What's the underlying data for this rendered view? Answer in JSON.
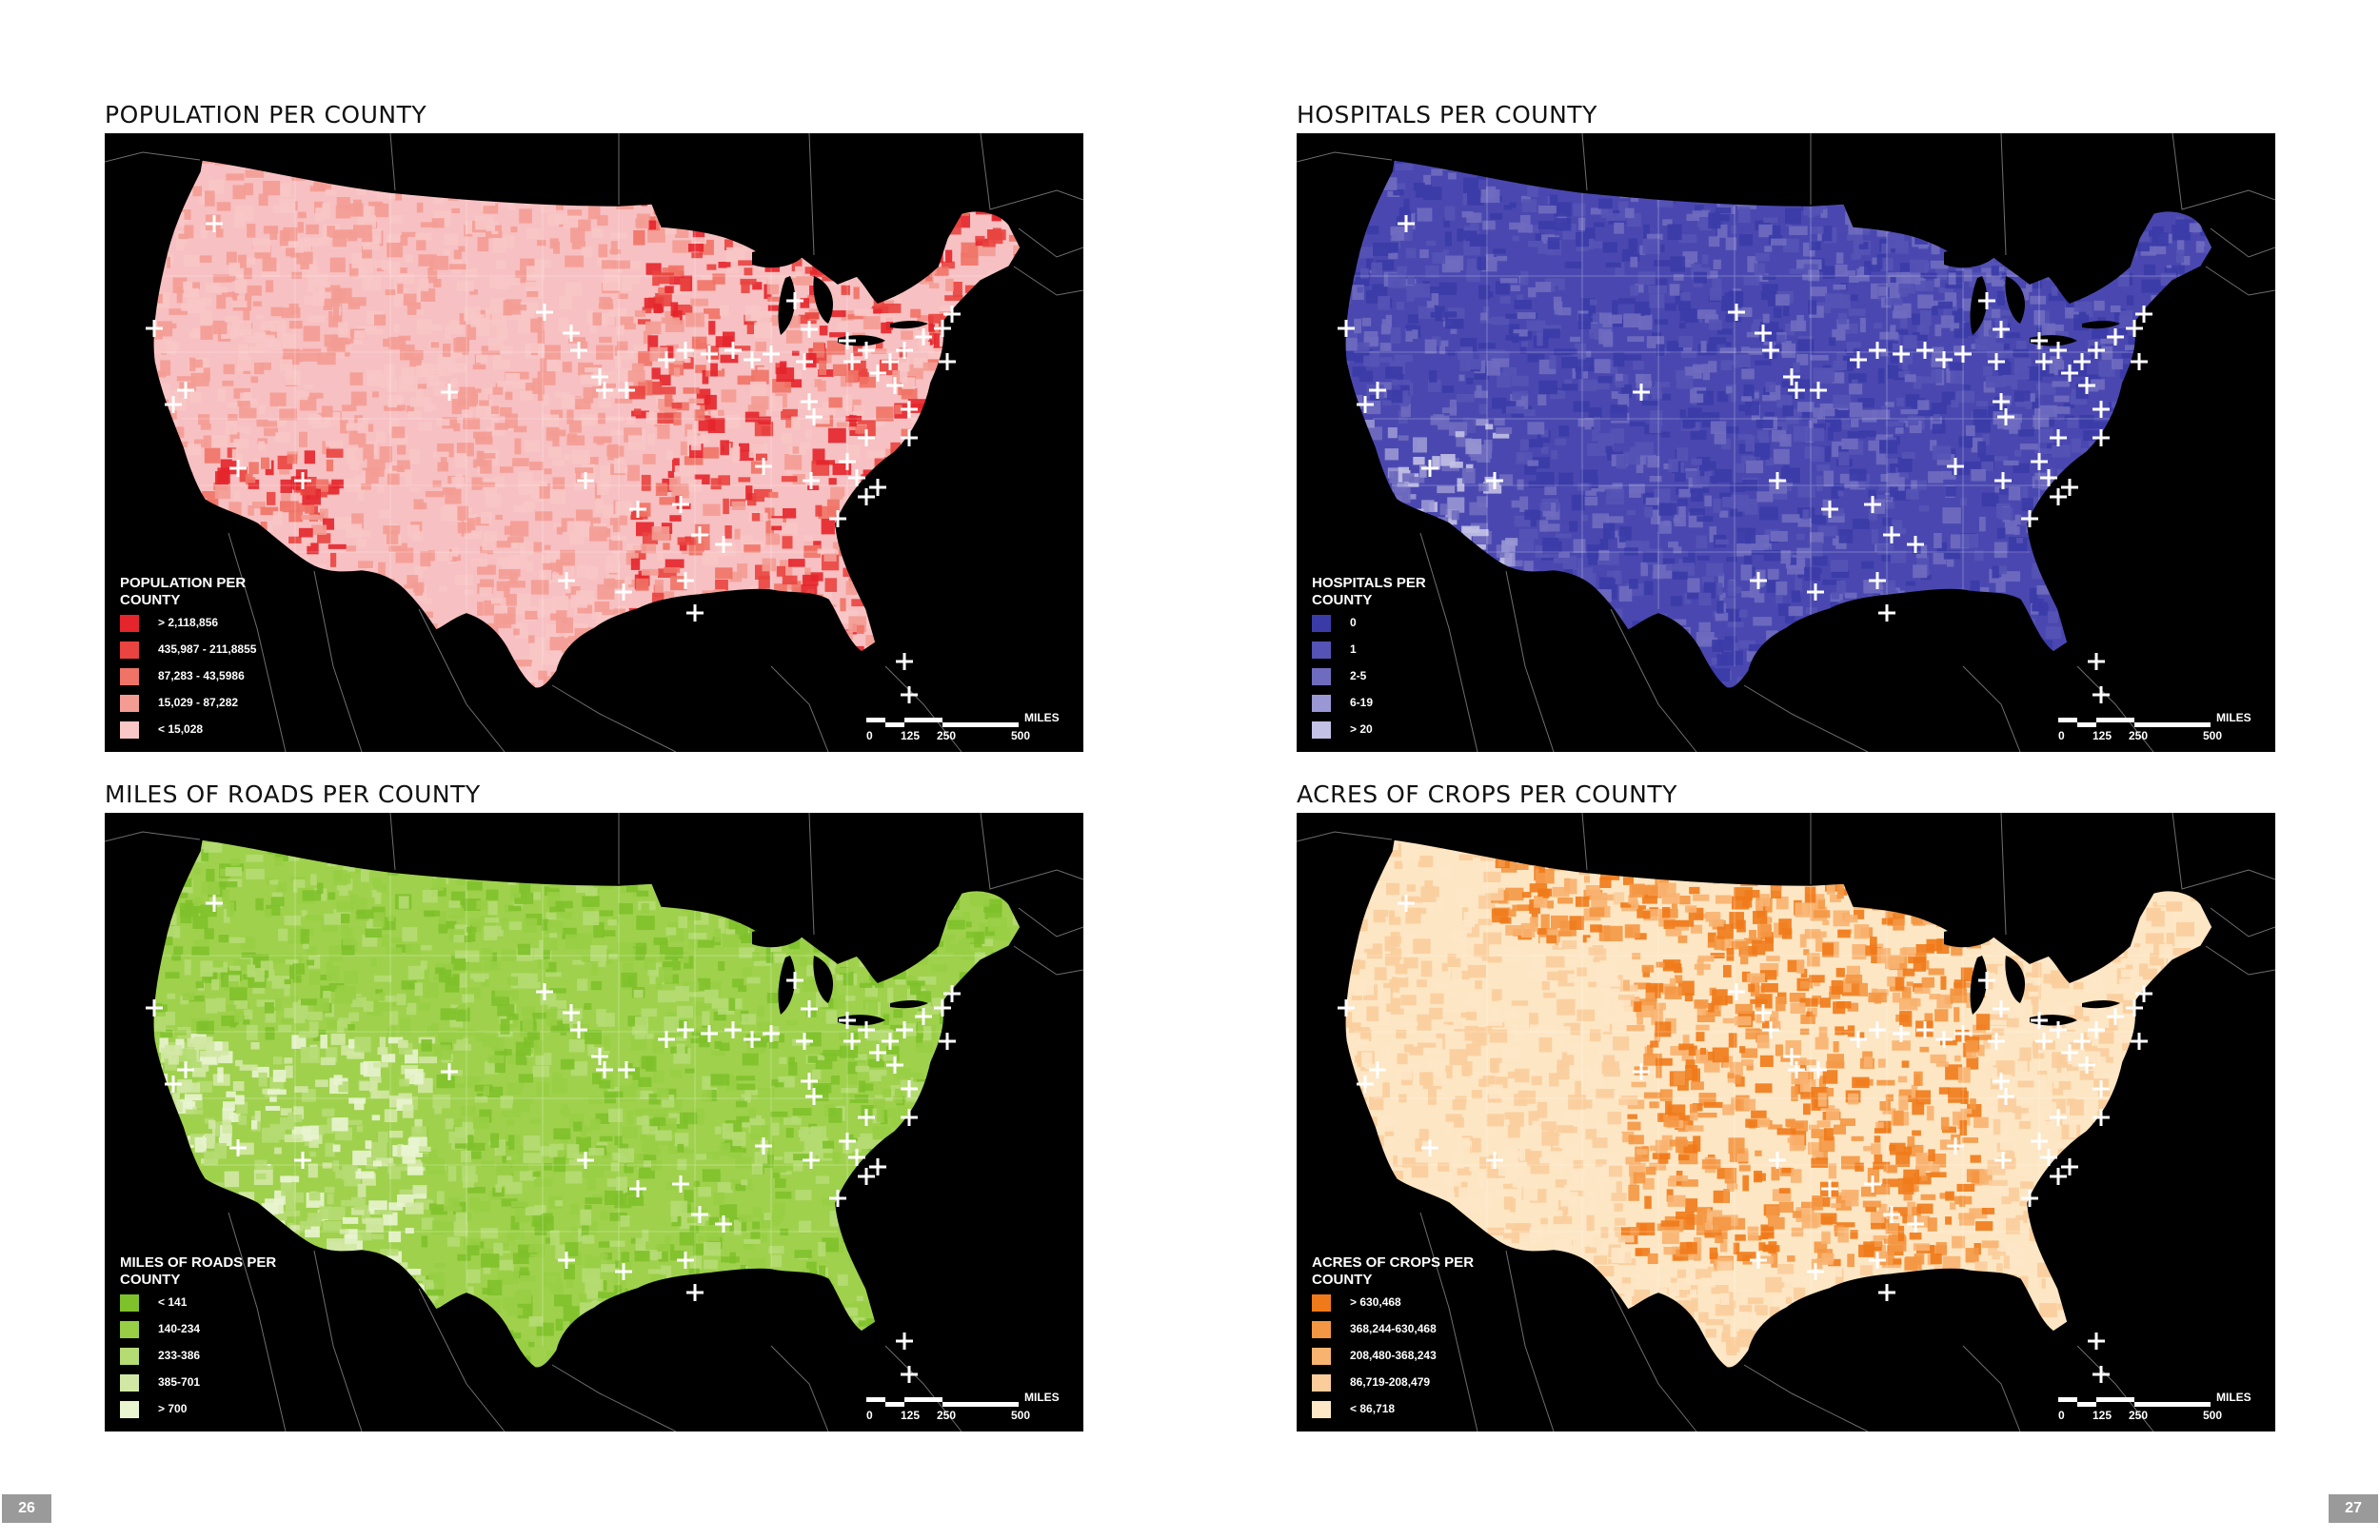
{
  "pages": {
    "left_number": "26",
    "right_number": "27"
  },
  "scale": {
    "unit": "MILES",
    "ticks": [
      "0",
      "125",
      "250",
      "500"
    ]
  },
  "marker_icon": "plus-cross-icon",
  "maps": [
    {
      "id": "population",
      "title": "POPULATION PER COUNTY",
      "legend_title": "POPULATION PER COUNTY",
      "base_color": "#f7c0c2",
      "accent_color": "#e62a2a",
      "classes": [
        {
          "label": "> 2,118,856",
          "color": "#e4252b"
        },
        {
          "label": "435,987 - 211,8855",
          "color": "#e9443f"
        },
        {
          "label": "87,283 - 43,5986",
          "color": "#ef7366"
        },
        {
          "label": "15,029 - 87,282",
          "color": "#f39c93"
        },
        {
          "label": "< 15,028",
          "color": "#f8c7c6"
        }
      ]
    },
    {
      "id": "hospitals",
      "title": "HOSPITALS PER COUNTY",
      "legend_title": "HOSPITALS PER COUNTY",
      "base_color": "#4a48b0",
      "accent_color": "#2f2f9e",
      "classes": [
        {
          "label": "0",
          "color": "#3b3ba8"
        },
        {
          "label": "1",
          "color": "#5553b5"
        },
        {
          "label": "2-5",
          "color": "#6f6cc0"
        },
        {
          "label": "6-19",
          "color": "#9a97d4"
        },
        {
          "label": "> 20",
          "color": "#c3c1e6"
        }
      ]
    },
    {
      "id": "roads",
      "title": "MILES OF ROADS PER COUNTY",
      "legend_title": "MILES OF ROADS PER COUNTY",
      "base_color": "#9fd14d",
      "accent_color": "#7cc12a",
      "classes": [
        {
          "label": "< 141",
          "color": "#7ec12b"
        },
        {
          "label": "140-234",
          "color": "#98ce45"
        },
        {
          "label": "233-386",
          "color": "#b5db73"
        },
        {
          "label": "385-701",
          "color": "#d1e8a4"
        },
        {
          "label": "> 700",
          "color": "#e9f4d0"
        }
      ]
    },
    {
      "id": "crops",
      "title": "ACRES OF CROPS PER COUNTY",
      "legend_title": "ACRES OF CROPS PER COUNTY",
      "base_color": "#fde6c4",
      "accent_color": "#f07d1e",
      "classes": [
        {
          "label": "> 630,468",
          "color": "#ef7a1a"
        },
        {
          "label": "368,244-630,468",
          "color": "#f49744"
        },
        {
          "label": "208,480-368,243",
          "color": "#f8b370"
        },
        {
          "label": "86,719-208,479",
          "color": "#fbcd9c"
        },
        {
          "label": "< 86,718",
          "color": "#fde7c7"
        }
      ]
    }
  ]
}
